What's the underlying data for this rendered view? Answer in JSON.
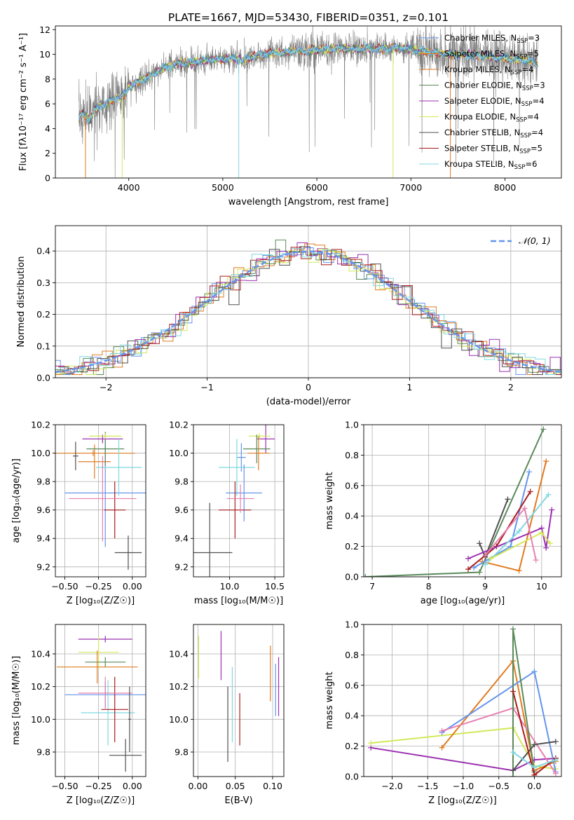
{
  "title": "PLATE=1667, MJD=53430, FIBERID=0351, z=0.101",
  "colors": {
    "c1": "#6495ED",
    "c2": "#E07B20",
    "c3": "#5A8A5A",
    "c4": "#9B30B0",
    "c5": "#D4E85A",
    "c6": "#505050",
    "c7": "#A81C1C",
    "c8": "#7FD8E0",
    "pink": "#E87FB0",
    "raw": "#808080"
  },
  "chart_data": [
    {
      "type": "line",
      "id": "spectrum",
      "xlabel": "wavelength [Angstrom, rest frame]",
      "ylabel": "Flux [fλ10⁻¹⁷ erg cm⁻² s⁻¹ A⁻¹]",
      "xlim": [
        3220,
        8600
      ],
      "ylim": [
        0,
        12.3
      ],
      "xticks": [
        4000,
        5000,
        6000,
        7000,
        8000
      ],
      "yticks": [
        0,
        2,
        4,
        6,
        8,
        10,
        12
      ],
      "continuum": {
        "x": [
          3470,
          3520,
          3580,
          3640,
          3700,
          3760,
          3820,
          3880,
          3920,
          3960,
          4000,
          4050,
          4100,
          4200,
          4300,
          4400,
          4500,
          4600,
          4700,
          4800,
          4900,
          5000,
          5100,
          5200,
          5300,
          5400,
          5500,
          5600,
          5700,
          5800,
          5900,
          6000,
          6100,
          6200,
          6300,
          6400,
          6500,
          6600,
          6700,
          6800,
          6900,
          7000,
          7100,
          7200,
          7300,
          7400,
          7500,
          7600,
          7700,
          7800,
          7900,
          8000,
          8100,
          8200,
          8300,
          8350
        ],
        "y": [
          4.9,
          5.2,
          4.7,
          5.5,
          5.8,
          6.0,
          6.3,
          6.6,
          6.5,
          6.8,
          7.3,
          7.6,
          7.8,
          8.1,
          8.6,
          9.0,
          9.2,
          9.3,
          9.4,
          9.5,
          9.6,
          9.6,
          9.7,
          9.5,
          9.8,
          10.0,
          10.1,
          10.1,
          10.2,
          10.3,
          10.2,
          10.4,
          10.4,
          10.5,
          10.5,
          10.4,
          10.5,
          10.4,
          10.5,
          10.5,
          10.5,
          10.4,
          10.3,
          10.2,
          10.1,
          10.0,
          10.0,
          10.0,
          9.9,
          9.9,
          9.7,
          9.7,
          9.6,
          9.5,
          9.4,
          9.2
        ]
      },
      "legend": [
        {
          "label": "Chabrier MILES, N",
          "sub": "SSP",
          "value": "=3",
          "color": "c1"
        },
        {
          "label": "Salpeter MILES, N",
          "sub": "SSP",
          "value": "=5",
          "color": "c2"
        },
        {
          "label": "Kroupa MILES, N",
          "sub": "SSP",
          "value": "=4",
          "color": "c2"
        },
        {
          "label": "Chabrier ELODIE, N",
          "sub": "SSP",
          "value": "=3",
          "color": "c3"
        },
        {
          "label": "Salpeter ELODIE, N",
          "sub": "SSP",
          "value": "=4",
          "color": "c4"
        },
        {
          "label": "Kroupa ELODIE, N",
          "sub": "SSP",
          "value": "=4",
          "color": "c5"
        },
        {
          "label": "Chabrier STELIB, N",
          "sub": "SSP",
          "value": "=4",
          "color": "c6"
        },
        {
          "label": "Salpeter STELIB, N",
          "sub": "SSP",
          "value": "=5",
          "color": "c7"
        },
        {
          "label": "Kroupa STELIB, N",
          "sub": "SSP",
          "value": "=6",
          "color": "c8"
        }
      ]
    },
    {
      "type": "line",
      "id": "histogram",
      "xlabel": "(data-model)/error",
      "ylabel": "Normed distribution",
      "xlim": [
        -2.5,
        2.5
      ],
      "ylim": [
        0,
        0.48
      ],
      "xticks": [
        -2,
        -1,
        0,
        1,
        2
      ],
      "yticks": [
        0.0,
        0.1,
        0.2,
        0.3,
        0.4
      ],
      "legend": "𝒩(0, 1)"
    },
    {
      "type": "scatter",
      "id": "age_vs_Z",
      "xlabel": "Z [log₁₀(Z/Z☉)]",
      "ylabel": "age  [log₁₀(age/yr)]",
      "xlim": [
        -0.57,
        0.1
      ],
      "ylim": [
        9.13,
        10.2
      ],
      "xticks": [
        -0.5,
        -0.25,
        0.0
      ],
      "xticklabels": [
        "−0.50",
        "−0.25",
        "0.00"
      ],
      "yticks": [
        9.2,
        9.4,
        9.6,
        9.8,
        10.0,
        10.2
      ],
      "points": [
        {
          "x": -0.2,
          "y": 9.72,
          "xe": 0.3,
          "ye": 0.38,
          "color": "c1"
        },
        {
          "x": -0.28,
          "y": 9.94,
          "xe": 0.12,
          "ye": 0.12,
          "color": "c2"
        },
        {
          "x": -0.29,
          "y": 10.0,
          "xe": 0.31,
          "ye": 0.02,
          "color": "c2"
        },
        {
          "x": -0.2,
          "y": 10.03,
          "xe": 0.14,
          "ye": 0.12,
          "color": "c3"
        },
        {
          "x": -0.22,
          "y": 10.1,
          "xe": 0.15,
          "ye": 0.03,
          "color": "c4"
        },
        {
          "x": -0.2,
          "y": 10.12,
          "xe": 0.12,
          "ye": 0.02,
          "color": "c5"
        },
        {
          "x": -0.03,
          "y": 9.3,
          "xe": 0.1,
          "ye": 0.12,
          "color": "c6"
        },
        {
          "x": -0.13,
          "y": 9.6,
          "xe": 0.08,
          "ye": 0.2,
          "color": "c7"
        },
        {
          "x": -0.1,
          "y": 9.9,
          "xe": 0.17,
          "ye": 0.2,
          "color": "c8"
        },
        {
          "x": -0.22,
          "y": 9.68,
          "xe": 0.25,
          "ye": 0.3,
          "color": "pink"
        },
        {
          "x": -0.42,
          "y": 9.98,
          "xe": 0.02,
          "ye": 0.1,
          "color": "c6"
        }
      ]
    },
    {
      "type": "scatter",
      "id": "age_vs_mass",
      "xlabel": "mass [log₁₀(M/M☉)]",
      "ylabel": "",
      "xlim": [
        9.6,
        10.6
      ],
      "ylim": [
        9.13,
        10.2
      ],
      "xticks": [
        10.0,
        10.5
      ],
      "xticklabels": [
        "10.0",
        "10.5"
      ],
      "yticks": [
        9.2,
        9.4,
        9.6,
        9.8,
        10.0,
        10.2
      ],
      "points": [
        {
          "x": 10.4,
          "y": 10.1,
          "xe": 0.1,
          "ye": 0.1,
          "color": "c4"
        },
        {
          "x": 10.33,
          "y": 10.12,
          "xe": 0.12,
          "ye": 0.02,
          "color": "c5"
        },
        {
          "x": 10.3,
          "y": 10.03,
          "xe": 0.15,
          "ye": 0.1,
          "color": "c3"
        },
        {
          "x": 10.32,
          "y": 10.0,
          "xe": 0.12,
          "ye": 0.12,
          "color": "c2"
        },
        {
          "x": 10.13,
          "y": 9.97,
          "xe": 0.05,
          "ye": 0.1,
          "color": "c1"
        },
        {
          "x": 10.08,
          "y": 9.9,
          "xe": 0.2,
          "ye": 0.2,
          "color": "c8"
        },
        {
          "x": 10.16,
          "y": 9.72,
          "xe": 0.2,
          "ye": 0.2,
          "color": "c1"
        },
        {
          "x": 10.06,
          "y": 9.6,
          "xe": 0.18,
          "ye": 0.2,
          "color": "c7"
        },
        {
          "x": 10.12,
          "y": 9.68,
          "xe": 0.15,
          "ye": 0.1,
          "color": "pink"
        },
        {
          "x": 9.78,
          "y": 9.3,
          "xe": 0.25,
          "ye": 0.35,
          "color": "c6"
        }
      ]
    },
    {
      "type": "line",
      "id": "massweight_vs_age",
      "xlabel": "age  [log₁₀(age/yr)]",
      "ylabel": "mass weight",
      "xlim": [
        6.85,
        10.35
      ],
      "ylim": [
        0,
        1.0
      ],
      "xticks": [
        7,
        8,
        9,
        10
      ],
      "yticks": [
        0.0,
        0.2,
        0.4,
        0.6,
        0.8,
        1.0
      ],
      "series": [
        {
          "color": "c3",
          "x": [
            6.88,
            8.9,
            10.03
          ],
          "y": [
            0.0,
            0.03,
            0.97
          ]
        },
        {
          "color": "c2",
          "x": [
            8.95,
            9.6,
            10.08
          ],
          "y": [
            0.1,
            0.04,
            0.76
          ]
        },
        {
          "color": "c1",
          "x": [
            8.8,
            9.45,
            9.78
          ],
          "y": [
            0.06,
            0.2,
            0.69
          ]
        },
        {
          "color": "c6",
          "x": [
            8.9,
            9.0,
            9.4
          ],
          "y": [
            0.22,
            0.13,
            0.51
          ]
        },
        {
          "color": "c7",
          "x": [
            8.7,
            9.2,
            9.8
          ],
          "y": [
            0.05,
            0.2,
            0.56
          ]
        },
        {
          "color": "c4",
          "x": [
            8.7,
            10.0,
            10.08,
            10.18
          ],
          "y": [
            0.12,
            0.32,
            0.19,
            0.44
          ]
        },
        {
          "color": "c8",
          "x": [
            9.0,
            9.6,
            10.12
          ],
          "y": [
            0.08,
            0.3,
            0.54
          ]
        },
        {
          "color": "c5",
          "x": [
            9.1,
            10.0,
            10.15
          ],
          "y": [
            0.12,
            0.29,
            0.22
          ]
        },
        {
          "color": "pink",
          "x": [
            9.0,
            9.7,
            9.9
          ],
          "y": [
            0.14,
            0.45,
            0.11
          ]
        }
      ]
    },
    {
      "type": "scatter",
      "id": "mass_vs_Z",
      "xlabel": "Z [log₁₀(Z/Z☉)]",
      "ylabel": "mass [log₁₀(M/M☉)]",
      "xlim": [
        -0.57,
        0.1
      ],
      "ylim": [
        9.65,
        10.58
      ],
      "xticks": [
        -0.5,
        -0.25,
        0.0
      ],
      "xticklabels": [
        "−0.50",
        "−0.25",
        "0.00"
      ],
      "yticks": [
        9.8,
        10.0,
        10.2,
        10.4
      ],
      "points": [
        {
          "x": -0.2,
          "y": 10.49,
          "xe": 0.2,
          "ye": 0.02,
          "color": "c4"
        },
        {
          "x": -0.25,
          "y": 10.41,
          "xe": 0.15,
          "ye": 0.1,
          "color": "c5"
        },
        {
          "x": -0.2,
          "y": 10.35,
          "xe": 0.15,
          "ye": 0.03,
          "color": "c3"
        },
        {
          "x": -0.26,
          "y": 10.32,
          "xe": 0.3,
          "ye": 0.1,
          "color": "c2"
        },
        {
          "x": -0.2,
          "y": 10.15,
          "xe": 0.3,
          "ye": 0.08,
          "color": "c1"
        },
        {
          "x": -0.18,
          "y": 10.04,
          "xe": 0.2,
          "ye": 0.2,
          "color": "c8"
        },
        {
          "x": -0.13,
          "y": 10.06,
          "xe": 0.1,
          "ye": 0.2,
          "color": "c7"
        },
        {
          "x": -0.2,
          "y": 10.16,
          "xe": 0.2,
          "ye": 0.1,
          "color": "pink"
        },
        {
          "x": -0.05,
          "y": 9.78,
          "xe": 0.12,
          "ye": 0.1,
          "color": "c6"
        },
        {
          "x": -0.02,
          "y": 10.0,
          "xe": 0.01,
          "ye": 0.2,
          "color": "c6"
        }
      ]
    },
    {
      "type": "scatter",
      "id": "mass_vs_ebv",
      "xlabel": "E(B-V)",
      "ylabel": "",
      "xlim": [
        -0.006,
        0.115
      ],
      "ylim": [
        9.65,
        10.58
      ],
      "xticks": [
        0.0,
        0.05,
        0.1
      ],
      "xticklabels": [
        "0.00",
        "0.05",
        "0.10"
      ],
      "yticks": [
        9.8,
        10.0,
        10.2,
        10.4
      ],
      "points": [
        {
          "x": 0.001,
          "y": 10.38,
          "xe": 0,
          "ye": 0.13,
          "color": "c5"
        },
        {
          "x": 0.031,
          "y": 10.39,
          "xe": 0,
          "ye": 0.15,
          "color": "c4"
        },
        {
          "x": 0.04,
          "y": 9.97,
          "xe": 0,
          "ye": 0.23,
          "color": "c6"
        },
        {
          "x": 0.046,
          "y": 10.09,
          "xe": 0,
          "ye": 0.23,
          "color": "c8"
        },
        {
          "x": 0.056,
          "y": 10.0,
          "xe": 0,
          "ye": 0.16,
          "color": "c7"
        },
        {
          "x": 0.097,
          "y": 10.28,
          "xe": 0,
          "ye": 0.17,
          "color": "c2"
        },
        {
          "x": 0.104,
          "y": 10.18,
          "xe": 0,
          "ye": 0.16,
          "color": "c1"
        },
        {
          "x": 0.108,
          "y": 10.2,
          "xe": 0,
          "ye": 0.18,
          "color": "c4"
        }
      ]
    },
    {
      "type": "line",
      "id": "massweight_vs_Z",
      "xlabel": "Z [log₁₀(Z/Z☉)]",
      "ylabel": "mass weight",
      "xlim": [
        -2.4,
        0.38
      ],
      "ylim": [
        0,
        1.0
      ],
      "xticks": [
        -2.0,
        -1.5,
        -1.0,
        -0.5,
        0.0
      ],
      "xticklabels": [
        "−2.0",
        "−1.5",
        "−1.0",
        "−0.5",
        "0.0"
      ],
      "yticks": [
        0.0,
        0.2,
        0.4,
        0.6,
        0.8,
        1.0
      ],
      "series": [
        {
          "color": "c4",
          "x": [
            -2.3,
            -0.3,
            0.0,
            0.3
          ],
          "y": [
            0.19,
            0.04,
            0.11,
            0.12
          ]
        },
        {
          "color": "c5",
          "x": [
            -2.3,
            -0.3,
            0.0,
            0.3
          ],
          "y": [
            0.22,
            0.32,
            0.07,
            0.05
          ]
        },
        {
          "color": "c2",
          "x": [
            -1.3,
            -0.3,
            0.0,
            0.3
          ],
          "y": [
            0.19,
            0.76,
            0.04,
            0.1
          ]
        },
        {
          "color": "c1",
          "x": [
            -1.3,
            0.0,
            0.3
          ],
          "y": [
            0.29,
            0.69,
            0.03
          ]
        },
        {
          "color": "pink",
          "x": [
            -1.3,
            -0.3,
            0.3
          ],
          "y": [
            0.3,
            0.45,
            0.02
          ]
        },
        {
          "color": "c3",
          "x": [
            -0.3,
            -0.3,
            0.0
          ],
          "y": [
            0.0,
            0.97,
            0.03
          ]
        },
        {
          "color": "c6",
          "x": [
            -0.3,
            0.0,
            0.3
          ],
          "y": [
            0.04,
            0.21,
            0.23
          ]
        },
        {
          "color": "c7",
          "x": [
            -0.3,
            0.0,
            0.3
          ],
          "y": [
            0.56,
            0.01,
            0.12
          ]
        },
        {
          "color": "c8",
          "x": [
            -0.3,
            0.0,
            0.3
          ],
          "y": [
            0.16,
            0.06,
            0.11
          ]
        }
      ]
    }
  ]
}
